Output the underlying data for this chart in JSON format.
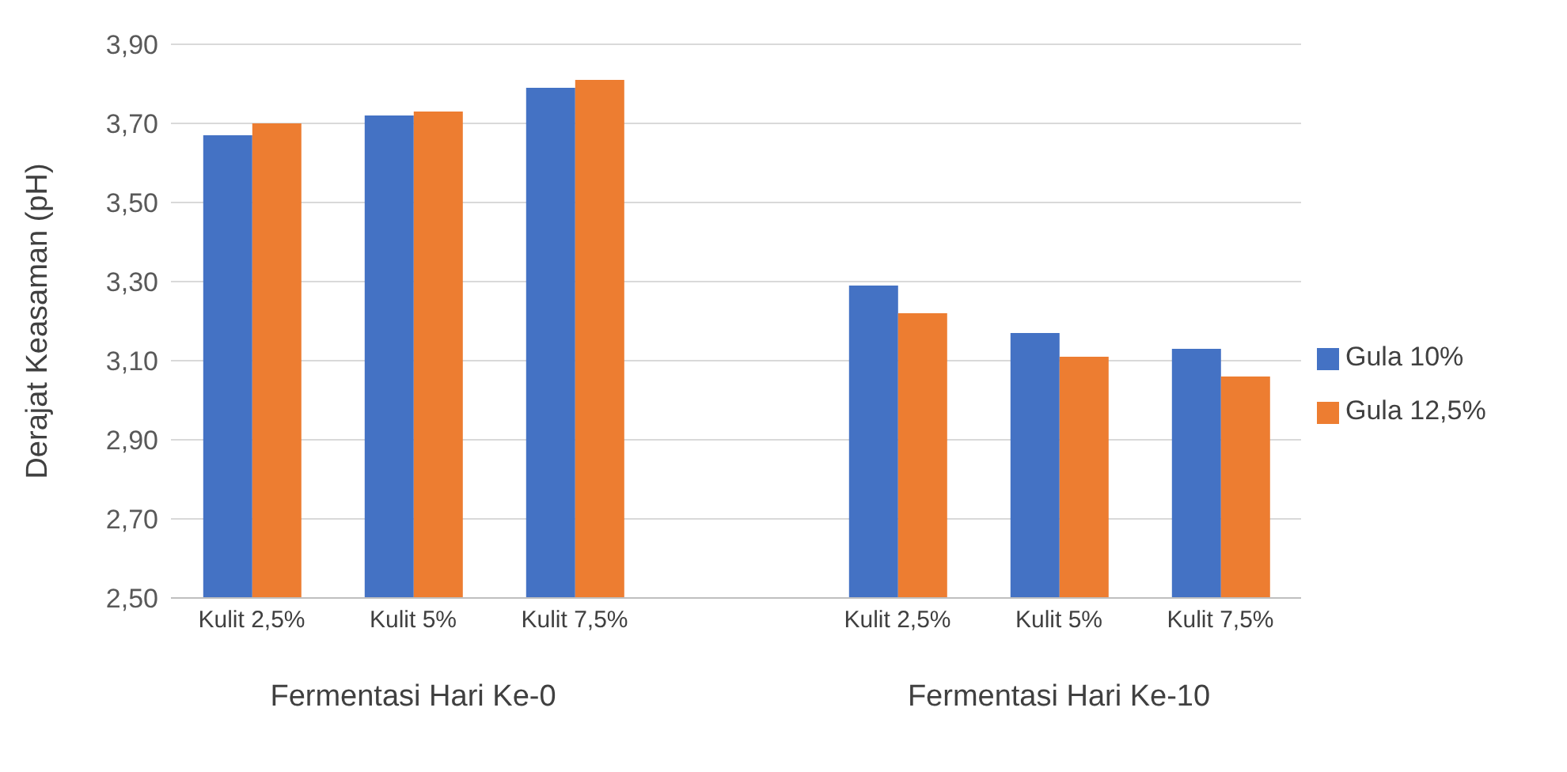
{
  "chart_data": {
    "type": "bar",
    "ylabel": "Derajat Keasaman (pH)",
    "categories": [
      "Kulit 2,5%",
      "Kulit 5%",
      "Kulit 7,5%",
      null,
      "Kulit 2,5%",
      "Kulit 5%",
      "Kulit 7,5%"
    ],
    "series": [
      {
        "name": "Gula 10%",
        "color": "#4472c4",
        "values": [
          3.67,
          3.72,
          3.79,
          null,
          3.29,
          3.17,
          3.13
        ]
      },
      {
        "name": "Gula 12,5%",
        "color": "#ed7d31",
        "values": [
          3.7,
          3.73,
          3.81,
          null,
          3.22,
          3.11,
          3.06
        ]
      }
    ],
    "ylim": [
      2.5,
      3.9
    ],
    "yticks": [
      {
        "value": 2.5,
        "label": "2,50"
      },
      {
        "value": 2.7,
        "label": "2,70"
      },
      {
        "value": 2.9,
        "label": "2,90"
      },
      {
        "value": 3.1,
        "label": "3,10"
      },
      {
        "value": 3.3,
        "label": "3,30"
      },
      {
        "value": 3.5,
        "label": "3,50"
      },
      {
        "value": 3.7,
        "label": "3,70"
      },
      {
        "value": 3.9,
        "label": "3,90"
      }
    ],
    "grid": "y",
    "legend": "right",
    "annotations": [
      "Fermentasi Hari Ke-0",
      "Fermentasi Hari Ke-10"
    ]
  }
}
